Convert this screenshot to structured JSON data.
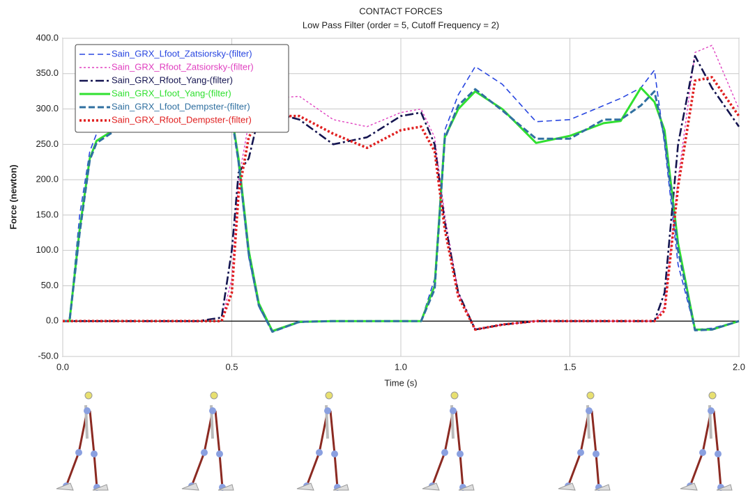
{
  "chart_data": {
    "type": "line",
    "title": "CONTACT FORCES",
    "subtitle": "Low Pass Filter (order = 5, Cutoff Frequency = 2)",
    "x_label": "Time (s)",
    "y_label": "Force (newton)",
    "x": [
      0,
      0.02,
      0.05,
      0.08,
      0.1,
      0.15,
      0.2,
      0.3,
      0.4,
      0.47,
      0.5,
      0.52,
      0.55,
      0.58,
      0.62,
      0.7,
      0.8,
      0.9,
      1.0,
      1.06,
      1.1,
      1.13,
      1.17,
      1.22,
      1.3,
      1.4,
      1.5,
      1.6,
      1.65,
      1.71,
      1.75,
      1.78,
      1.82,
      1.87,
      1.92,
      2.0
    ],
    "series": [
      {
        "name": "Sain_GRX_Lfoot_Zatsiorsky-(filter)",
        "color": "#2846e0",
        "dash": "8,5",
        "width": 1.6,
        "values": [
          0,
          0,
          150,
          240,
          265,
          280,
          285,
          285,
          285,
          290,
          295,
          220,
          90,
          20,
          -15,
          -2,
          0,
          0,
          0,
          0,
          60,
          270,
          320,
          360,
          335,
          282,
          285,
          305,
          315,
          330,
          355,
          250,
          80,
          -12,
          -10,
          0
        ]
      },
      {
        "name": "Sain_GRX_Rfoot_Zatsiorsky-(filter)",
        "color": "#e040c0",
        "dash": "3,3",
        "width": 1.4,
        "values": [
          0,
          0,
          0,
          0,
          0,
          0,
          0,
          0,
          0,
          0,
          60,
          200,
          280,
          320,
          315,
          318,
          285,
          275,
          295,
          300,
          260,
          150,
          40,
          -12,
          -5,
          0,
          0,
          0,
          0,
          0,
          0,
          20,
          200,
          380,
          390,
          300
        ]
      },
      {
        "name": "Sain_GRX_Rfoot_Yang-(filter)",
        "color": "#141450",
        "dash": "12,4,3,4",
        "width": 2.6,
        "values": [
          0,
          0,
          0,
          0,
          0,
          0,
          0,
          0,
          0,
          5,
          100,
          210,
          230,
          290,
          295,
          285,
          250,
          260,
          290,
          295,
          250,
          140,
          40,
          -12,
          -5,
          0,
          0,
          0,
          0,
          0,
          0,
          40,
          250,
          375,
          330,
          275
        ]
      },
      {
        "name": "Sain_GRX_Lfoot_Yang-(filter)",
        "color": "#30e030",
        "dash": "none",
        "width": 3,
        "values": [
          0,
          0,
          130,
          230,
          255,
          270,
          278,
          280,
          280,
          285,
          290,
          230,
          100,
          25,
          -14,
          -1,
          0,
          0,
          0,
          0,
          50,
          260,
          300,
          325,
          300,
          252,
          262,
          280,
          283,
          330,
          310,
          270,
          110,
          -12,
          -12,
          0
        ]
      },
      {
        "name": "Sain_GRX_Lfoot_Dempster-(filter)",
        "color": "#3070a0",
        "dash": "9,4",
        "width": 3,
        "values": [
          0,
          0,
          125,
          228,
          252,
          268,
          276,
          278,
          278,
          283,
          288,
          225,
          95,
          22,
          -15,
          -1,
          0,
          0,
          0,
          0,
          45,
          258,
          305,
          328,
          298,
          258,
          258,
          285,
          285,
          305,
          325,
          260,
          100,
          -13,
          -12,
          0
        ]
      },
      {
        "name": "Sain_GRX_Rfoot_Dempster-(filter)",
        "color": "#e02020",
        "dash": "3,3",
        "width": 3.6,
        "values": [
          0,
          0,
          0,
          0,
          0,
          0,
          0,
          0,
          0,
          0,
          40,
          180,
          260,
          285,
          290,
          290,
          265,
          245,
          270,
          275,
          240,
          130,
          35,
          -12,
          -5,
          0,
          0,
          0,
          0,
          0,
          0,
          15,
          190,
          340,
          345,
          290
        ]
      }
    ],
    "xlim": [
      0,
      2
    ],
    "xticks": [
      {
        "value": 0,
        "label": "0.0"
      },
      0.5,
      {
        "value": 1,
        "label": "1.0"
      },
      1.5,
      {
        "value": 2,
        "label": "2.0"
      }
    ],
    "ylim": [
      -50,
      400
    ],
    "yticks": [
      {
        "value": -50,
        "label": "-50.0"
      },
      {
        "value": 0,
        "label": "0.0"
      },
      {
        "value": 50,
        "label": "50.0"
      },
      {
        "value": 100,
        "label": "100.0"
      },
      {
        "value": 150,
        "label": "150.0"
      },
      {
        "value": 200,
        "label": "200.0"
      },
      {
        "value": 250,
        "label": "250.0"
      },
      {
        "value": 300,
        "label": "300.0"
      },
      {
        "value": 350,
        "label": "350.0"
      },
      {
        "value": 400,
        "label": "400.0"
      }
    ],
    "grid": true,
    "legend": "upper left"
  }
}
